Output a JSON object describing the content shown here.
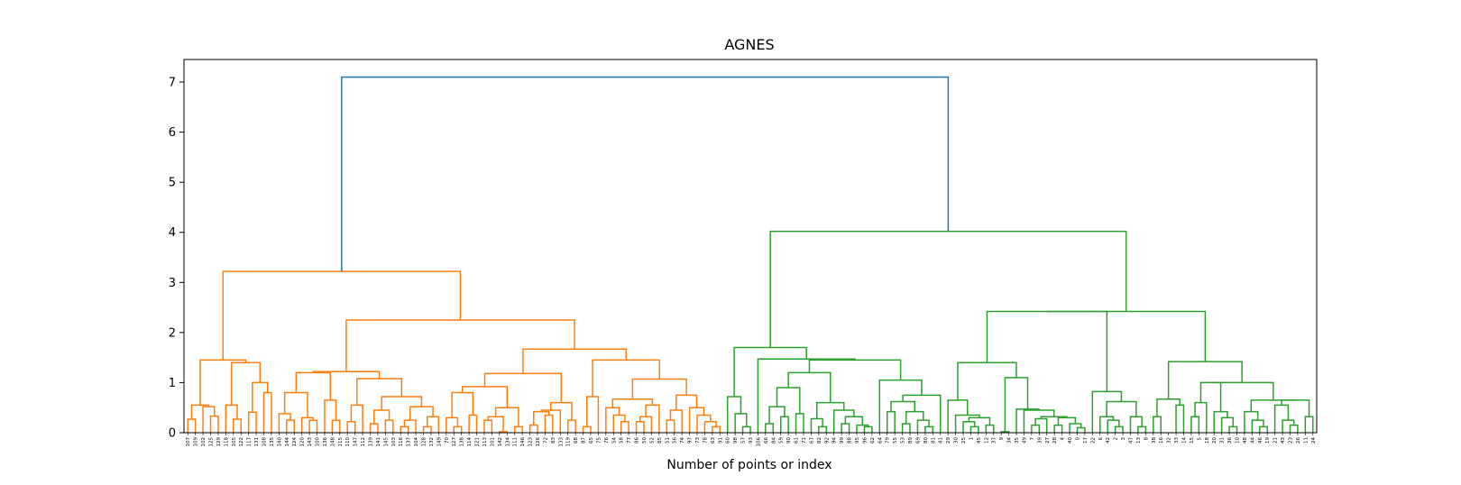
{
  "chart_data": {
    "type": "dendrogram",
    "title": "AGNES",
    "xlabel": "Number of points or index",
    "ylabel": "",
    "ylim": [
      0,
      7.45
    ],
    "yticks": [
      0,
      1,
      2,
      3,
      4,
      5,
      6,
      7
    ],
    "grid": false,
    "legend": "none",
    "colors": {
      "cluster_1": "#ff7f0e",
      "cluster_2": "#2ca02c",
      "root": "#1f77b4"
    },
    "leaf_order": [
      "107",
      "109",
      "102",
      "125",
      "129",
      "118",
      "105",
      "122",
      "117",
      "131",
      "108",
      "135",
      "140",
      "144",
      "124",
      "120",
      "143",
      "100",
      "136",
      "148",
      "115",
      "110",
      "147",
      "112",
      "139",
      "141",
      "145",
      "103",
      "116",
      "137",
      "104",
      "128",
      "132",
      "149",
      "70",
      "127",
      "138",
      "114",
      "121",
      "113",
      "101",
      "142",
      "134",
      "111",
      "146",
      "123",
      "126",
      "72",
      "83",
      "133",
      "119",
      "68",
      "87",
      "65",
      "75",
      "76",
      "54",
      "58",
      "77",
      "86",
      "50",
      "52",
      "85",
      "51",
      "56",
      "74",
      "97",
      "73",
      "78",
      "63",
      "91",
      "60",
      "98",
      "57",
      "93",
      "106",
      "66",
      "84",
      "59",
      "90",
      "61",
      "71",
      "67",
      "82",
      "92",
      "94",
      "99",
      "88",
      "95",
      "96",
      "62",
      "64",
      "79",
      "55",
      "53",
      "89",
      "69",
      "80",
      "81",
      "41",
      "29",
      "30",
      "25",
      "1",
      "45",
      "12",
      "37",
      "9",
      "34",
      "35",
      "49",
      "7",
      "39",
      "27",
      "28",
      "4",
      "40",
      "0",
      "17",
      "22",
      "6",
      "42",
      "2",
      "3",
      "47",
      "13",
      "8",
      "38",
      "16",
      "32",
      "33",
      "14",
      "15",
      "5",
      "18",
      "20",
      "31",
      "36",
      "10",
      "48",
      "44",
      "46",
      "19",
      "21",
      "43",
      "23",
      "26",
      "11",
      "24"
    ],
    "merges": [
      {
        "nodes": [
          "107",
          "109"
        ],
        "height": 0.27
      },
      {
        "nodes": [
          "125",
          "129"
        ],
        "height": 0.33
      },
      {
        "nodes": [
          "102",
          "c2"
        ],
        "height": 0.52
      },
      {
        "nodes": [
          "c1",
          "c3"
        ],
        "height": 0.55
      },
      {
        "nodes": [
          "105",
          "122"
        ],
        "height": 0.27
      },
      {
        "nodes": [
          "118",
          "c5"
        ],
        "height": 0.55
      },
      {
        "nodes": [
          "117",
          "131"
        ],
        "height": 0.41
      },
      {
        "nodes": [
          "108",
          "135"
        ],
        "height": 0.8
      },
      {
        "nodes": [
          "c7",
          "c8"
        ],
        "height": 1.0
      },
      {
        "nodes": [
          "c6",
          "c9"
        ],
        "height": 1.4
      },
      {
        "nodes": [
          "c4",
          "c10"
        ],
        "height": 1.45
      },
      {
        "nodes": [
          "143",
          "100"
        ],
        "height": 0.25
      },
      {
        "nodes": [
          "120",
          "c12"
        ],
        "height": 0.3
      },
      {
        "nodes": [
          "144",
          "124"
        ],
        "height": 0.25
      },
      {
        "nodes": [
          "140",
          "c14"
        ],
        "height": 0.38
      },
      {
        "nodes": [
          "c15",
          "c13"
        ],
        "height": 0.8
      },
      {
        "nodes": [
          "148",
          "115"
        ],
        "height": 0.25
      },
      {
        "nodes": [
          "136",
          "c17"
        ],
        "height": 0.65
      },
      {
        "nodes": [
          "c16",
          "c18"
        ],
        "height": 1.2
      },
      {
        "nodes": [
          "110",
          "147"
        ],
        "height": 0.22
      },
      {
        "nodes": [
          "c20",
          "112"
        ],
        "height": 0.55
      },
      {
        "nodes": [
          "139",
          "141"
        ],
        "height": 0.18
      },
      {
        "nodes": [
          "145",
          "103"
        ],
        "height": 0.25
      },
      {
        "nodes": [
          "c22",
          "c23"
        ],
        "height": 0.45
      },
      {
        "nodes": [
          "116",
          "137"
        ],
        "height": 0.12
      },
      {
        "nodes": [
          "104",
          "c25"
        ],
        "height": 0.25
      },
      {
        "nodes": [
          "128",
          "132"
        ],
        "height": 0.12
      },
      {
        "nodes": [
          "c27",
          "149"
        ],
        "height": 0.32
      },
      {
        "nodes": [
          "c26",
          "c28"
        ],
        "height": 0.52
      },
      {
        "nodes": [
          "c24",
          "c29"
        ],
        "height": 0.72
      },
      {
        "nodes": [
          "c21",
          "c30"
        ],
        "height": 1.08
      },
      {
        "nodes": [
          "c19",
          "c31"
        ],
        "height": 1.22
      },
      {
        "nodes": [
          "127",
          "138"
        ],
        "height": 0.12
      },
      {
        "nodes": [
          "70",
          "c33"
        ],
        "height": 0.3
      },
      {
        "nodes": [
          "114",
          "121"
        ],
        "height": 0.35
      },
      {
        "nodes": [
          "c34",
          "c35"
        ],
        "height": 0.8
      },
      {
        "nodes": [
          "113",
          "101"
        ],
        "height": 0.25
      },
      {
        "nodes": [
          "142",
          "134"
        ],
        "height": 0.02
      },
      {
        "nodes": [
          "c37",
          "c38"
        ],
        "height": 0.32
      },
      {
        "nodes": [
          "111",
          "146"
        ],
        "height": 0.12
      },
      {
        "nodes": [
          "c39",
          "c40"
        ],
        "height": 0.5
      },
      {
        "nodes": [
          "c36",
          "c41"
        ],
        "height": 0.92
      },
      {
        "nodes": [
          "123",
          "126"
        ],
        "height": 0.15
      },
      {
        "nodes": [
          "72",
          "83"
        ],
        "height": 0.35
      },
      {
        "nodes": [
          "c43",
          "c44"
        ],
        "height": 0.42
      },
      {
        "nodes": [
          "133",
          "c45"
        ],
        "height": 0.45
      },
      {
        "nodes": [
          "119",
          "68"
        ],
        "height": 0.25
      },
      {
        "nodes": [
          "c46",
          "c47"
        ],
        "height": 0.6
      },
      {
        "nodes": [
          "c42",
          "c48"
        ],
        "height": 1.18
      },
      {
        "nodes": [
          "87",
          "65"
        ],
        "height": 0.12
      },
      {
        "nodes": [
          "c50",
          "75"
        ],
        "height": 0.72
      },
      {
        "nodes": [
          "58",
          "77"
        ],
        "height": 0.22
      },
      {
        "nodes": [
          "54",
          "c52"
        ],
        "height": 0.35
      },
      {
        "nodes": [
          "76",
          "c53"
        ],
        "height": 0.5
      },
      {
        "nodes": [
          "86",
          "50"
        ],
        "height": 0.22
      },
      {
        "nodes": [
          "c55",
          "52"
        ],
        "height": 0.32
      },
      {
        "nodes": [
          "c56",
          "85"
        ],
        "height": 0.55
      },
      {
        "nodes": [
          "c54",
          "c57"
        ],
        "height": 0.67
      },
      {
        "nodes": [
          "51",
          "56"
        ],
        "height": 0.25
      },
      {
        "nodes": [
          "c59",
          "74"
        ],
        "height": 0.45
      },
      {
        "nodes": [
          "63",
          "91"
        ],
        "height": 0.12
      },
      {
        "nodes": [
          "78",
          "c61"
        ],
        "height": 0.22
      },
      {
        "nodes": [
          "73",
          "c62"
        ],
        "height": 0.35
      },
      {
        "nodes": [
          "97",
          "c63"
        ],
        "height": 0.5
      },
      {
        "nodes": [
          "c60",
          "c64"
        ],
        "height": 0.75
      },
      {
        "nodes": [
          "c58",
          "c65"
        ],
        "height": 1.07
      },
      {
        "nodes": [
          "c51",
          "c66"
        ],
        "height": 1.45
      },
      {
        "nodes": [
          "c49",
          "c67"
        ],
        "height": 1.67
      },
      {
        "nodes": [
          "c32",
          "c68"
        ],
        "height": 2.25
      },
      {
        "nodes": [
          "c11",
          "c69"
        ],
        "height": 3.22
      },
      {
        "nodes": [
          "57",
          "93"
        ],
        "height": 0.12
      },
      {
        "nodes": [
          "98",
          "c71"
        ],
        "height": 0.38
      },
      {
        "nodes": [
          "60",
          "c72"
        ],
        "height": 0.72
      },
      {
        "nodes": [
          "66",
          "84"
        ],
        "height": 0.18
      },
      {
        "nodes": [
          "59",
          "90"
        ],
        "height": 0.32
      },
      {
        "nodes": [
          "c74",
          "c75"
        ],
        "height": 0.52
      },
      {
        "nodes": [
          "61",
          "71"
        ],
        "height": 0.38
      },
      {
        "nodes": [
          "c76",
          "c77"
        ],
        "height": 0.9
      },
      {
        "nodes": [
          "82",
          "92"
        ],
        "height": 0.12
      },
      {
        "nodes": [
          "67",
          "c79"
        ],
        "height": 0.28
      },
      {
        "nodes": [
          "96",
          "62"
        ],
        "height": 0.12
      },
      {
        "nodes": [
          "95",
          "c81"
        ],
        "height": 0.15
      },
      {
        "nodes": [
          "99",
          "88"
        ],
        "height": 0.18
      },
      {
        "nodes": [
          "c83",
          "c82"
        ],
        "height": 0.32
      },
      {
        "nodes": [
          "94",
          "c84"
        ],
        "height": 0.45
      },
      {
        "nodes": [
          "c80",
          "c85"
        ],
        "height": 0.6
      },
      {
        "nodes": [
          "c78",
          "c86"
        ],
        "height": 1.2
      },
      {
        "nodes": [
          "79",
          "55"
        ],
        "height": 0.42
      },
      {
        "nodes": [
          "53",
          "89"
        ],
        "height": 0.18
      },
      {
        "nodes": [
          "80",
          "81"
        ],
        "height": 0.12
      },
      {
        "nodes": [
          "69",
          "c90"
        ],
        "height": 0.25
      },
      {
        "nodes": [
          "c89",
          "c91"
        ],
        "height": 0.42
      },
      {
        "nodes": [
          "c88",
          "c92"
        ],
        "height": 0.62
      },
      {
        "nodes": [
          "c93",
          "41"
        ],
        "height": 0.75
      },
      {
        "nodes": [
          "64",
          "c94"
        ],
        "height": 1.05
      },
      {
        "nodes": [
          "c87",
          "c95"
        ],
        "height": 1.45
      },
      {
        "nodes": [
          "106",
          "c96"
        ],
        "height": 1.47
      },
      {
        "nodes": [
          "c73",
          "c97"
        ],
        "height": 1.7
      },
      {
        "nodes": [
          "1",
          "45"
        ],
        "height": 0.12
      },
      {
        "nodes": [
          "c99",
          "25"
        ],
        "height": 0.22
      },
      {
        "nodes": [
          "12",
          "37"
        ],
        "height": 0.15
      },
      {
        "nodes": [
          "c100",
          "c101"
        ],
        "height": 0.3
      },
      {
        "nodes": [
          "30",
          "c102"
        ],
        "height": 0.35
      },
      {
        "nodes": [
          "29",
          "c103"
        ],
        "height": 0.65
      },
      {
        "nodes": [
          "9",
          "34"
        ],
        "height": 0.02
      },
      {
        "nodes": [
          "7",
          "39"
        ],
        "height": 0.15
      },
      {
        "nodes": [
          "c106",
          "27"
        ],
        "height": 0.28
      },
      {
        "nodes": [
          "28",
          "4"
        ],
        "height": 0.15
      },
      {
        "nodes": [
          "0",
          "17"
        ],
        "height": 0.1
      },
      {
        "nodes": [
          "40",
          "c109"
        ],
        "height": 0.18
      },
      {
        "nodes": [
          "c108",
          "c110"
        ],
        "height": 0.3
      },
      {
        "nodes": [
          "c107",
          "c111"
        ],
        "height": 0.32
      },
      {
        "nodes": [
          "49",
          "c112"
        ],
        "height": 0.45
      },
      {
        "nodes": [
          "35",
          "c113"
        ],
        "height": 0.47
      },
      {
        "nodes": [
          "c105",
          "c114"
        ],
        "height": 1.1
      },
      {
        "nodes": [
          "c104",
          "c115"
        ],
        "height": 1.4
      },
      {
        "nodes": [
          "2",
          "3"
        ],
        "height": 0.12
      },
      {
        "nodes": [
          "42",
          "c117"
        ],
        "height": 0.25
      },
      {
        "nodes": [
          "6",
          "c118"
        ],
        "height": 0.32
      },
      {
        "nodes": [
          "13",
          "8"
        ],
        "height": 0.12
      },
      {
        "nodes": [
          "47",
          "c120"
        ],
        "height": 0.32
      },
      {
        "nodes": [
          "c119",
          "c121"
        ],
        "height": 0.62
      },
      {
        "nodes": [
          "22",
          "c122"
        ],
        "height": 0.82
      },
      {
        "nodes": [
          "c116",
          "c123"
        ],
        "height": 2.42
      },
      {
        "nodes": [
          "38",
          "16"
        ],
        "height": 0.32
      },
      {
        "nodes": [
          "33",
          "14"
        ],
        "height": 0.55
      },
      {
        "nodes": [
          "c125",
          "c126"
        ],
        "height": 0.67
      },
      {
        "nodes": [
          "15",
          "5"
        ],
        "height": 0.32
      },
      {
        "nodes": [
          "c128",
          "18"
        ],
        "height": 0.6
      },
      {
        "nodes": [
          "36",
          "10"
        ],
        "height": 0.12
      },
      {
        "nodes": [
          "31",
          "c130"
        ],
        "height": 0.3
      },
      {
        "nodes": [
          "20",
          "c131"
        ],
        "height": 0.42
      },
      {
        "nodes": [
          "c129",
          "c132"
        ],
        "height": 1.0
      },
      {
        "nodes": [
          "46",
          "19"
        ],
        "height": 0.12
      },
      {
        "nodes": [
          "44",
          "c134"
        ],
        "height": 0.25
      },
      {
        "nodes": [
          "48",
          "c135"
        ],
        "height": 0.42
      },
      {
        "nodes": [
          "23",
          "26"
        ],
        "height": 0.15
      },
      {
        "nodes": [
          "43",
          "c137"
        ],
        "height": 0.25
      },
      {
        "nodes": [
          "11",
          "24"
        ],
        "height": 0.32
      },
      {
        "nodes": [
          "21",
          "c138"
        ],
        "height": 0.55
      },
      {
        "nodes": [
          "c139",
          "c140"
        ],
        "height": 0.65
      },
      {
        "nodes": [
          "c136",
          "c141"
        ],
        "height": 0.65
      },
      {
        "nodes": [
          "c133",
          "c142"
        ],
        "height": 1.0
      },
      {
        "nodes": [
          "c127",
          "c143"
        ],
        "height": 1.42
      },
      {
        "nodes": [
          "c124",
          "c144"
        ],
        "height": 2.42
      },
      {
        "nodes": [
          "c98",
          "c145"
        ],
        "height": 4.02
      },
      {
        "nodes": [
          "c70",
          "c146"
        ],
        "height": 7.1
      }
    ]
  }
}
